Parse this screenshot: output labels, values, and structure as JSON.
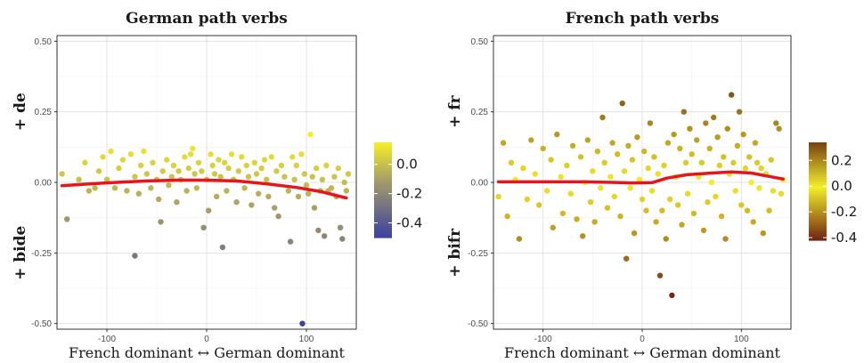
{
  "chart_data": [
    {
      "type": "scatter",
      "title": "German path verbs",
      "ylabel_top": "+ de",
      "ylabel_bottom": "+ bide",
      "xlabel": "French dominant ↔ German dominant",
      "xlim": [
        -150,
        150
      ],
      "ylim": [
        -0.52,
        0.52
      ],
      "xticks": [
        -100,
        0,
        100
      ],
      "xtick_labels": [
        "-100",
        "0",
        "100"
      ],
      "yticks": [
        -0.5,
        -0.25,
        0,
        0.25,
        0.5
      ],
      "ytick_labels": [
        "-0.50",
        "-0.25",
        "0.00",
        "0.25",
        "0.50"
      ],
      "grid": true,
      "colorbar": {
        "range": [
          -0.5,
          0.15
        ],
        "ticks": [
          0.0,
          -0.2,
          -0.4
        ],
        "tick_labels": [
          "0.0",
          "-0.2",
          "-0.4"
        ],
        "low_color": "#3b3fa0",
        "mid_color": "#a39a6a",
        "high_color": "#f4ee2a"
      },
      "smooth_color": "#e8141c",
      "smooth": [
        [
          -145,
          -0.012
        ],
        [
          -120,
          -0.006
        ],
        [
          -90,
          0.0
        ],
        [
          -60,
          0.005
        ],
        [
          -30,
          0.008
        ],
        [
          0,
          0.008
        ],
        [
          30,
          0.005
        ],
        [
          60,
          -0.005
        ],
        [
          90,
          -0.018
        ],
        [
          115,
          -0.033
        ],
        [
          140,
          -0.055
        ]
      ],
      "points": [
        [
          -145,
          0.03
        ],
        [
          -140,
          -0.13
        ],
        [
          -128,
          0.01
        ],
        [
          -122,
          0.07
        ],
        [
          -118,
          -0.03
        ],
        [
          -112,
          -0.02
        ],
        [
          -108,
          0.04
        ],
        [
          -104,
          0.09
        ],
        [
          -100,
          0.01
        ],
        [
          -96,
          0.11
        ],
        [
          -92,
          -0.02
        ],
        [
          -88,
          0.05
        ],
        [
          -84,
          0.08
        ],
        [
          -80,
          -0.03
        ],
        [
          -76,
          0.1
        ],
        [
          -72,
          -0.26
        ],
        [
          -72,
          0.02
        ],
        [
          -68,
          -0.04
        ],
        [
          -66,
          0.06
        ],
        [
          -63,
          0.11
        ],
        [
          -60,
          0.03
        ],
        [
          -56,
          -0.02
        ],
        [
          -54,
          0.07
        ],
        [
          -50,
          0.01
        ],
        [
          -48,
          -0.06
        ],
        [
          -46,
          -0.14
        ],
        [
          -44,
          0.04
        ],
        [
          -40,
          0.08
        ],
        [
          -38,
          -0.01
        ],
        [
          -35,
          0.02
        ],
        [
          -33,
          0.06
        ],
        [
          -30,
          -0.07
        ],
        [
          -28,
          0.04
        ],
        [
          -26,
          0.01
        ],
        [
          -22,
          0.09
        ],
        [
          -20,
          -0.03
        ],
        [
          -18,
          0.05
        ],
        [
          -16,
          0.1
        ],
        [
          -14,
          0.12
        ],
        [
          -12,
          0.03
        ],
        [
          -10,
          -0.02
        ],
        [
          -8,
          0.07
        ],
        [
          -5,
          0.04
        ],
        [
          -3,
          -0.16
        ],
        [
          0,
          0.01
        ],
        [
          2,
          -0.1
        ],
        [
          4,
          0.1
        ],
        [
          6,
          0.06
        ],
        [
          8,
          0.03
        ],
        [
          10,
          -0.05
        ],
        [
          12,
          0.08
        ],
        [
          14,
          0.02
        ],
        [
          16,
          -0.23
        ],
        [
          18,
          0.07
        ],
        [
          20,
          -0.03
        ],
        [
          22,
          0.05
        ],
        [
          25,
          0.1
        ],
        [
          27,
          0.01
        ],
        [
          30,
          -0.07
        ],
        [
          32,
          0.04
        ],
        [
          35,
          0.09
        ],
        [
          38,
          -0.02
        ],
        [
          40,
          0.06
        ],
        [
          42,
          0.02
        ],
        [
          45,
          -0.08
        ],
        [
          48,
          0.07
        ],
        [
          50,
          0.03
        ],
        [
          52,
          -0.04
        ],
        [
          55,
          0.05
        ],
        [
          58,
          0.08
        ],
        [
          60,
          0.01
        ],
        [
          62,
          -0.05
        ],
        [
          65,
          0.09
        ],
        [
          68,
          -0.09
        ],
        [
          70,
          0.04
        ],
        [
          72,
          -0.12
        ],
        [
          75,
          0.06
        ],
        [
          78,
          0.02
        ],
        [
          82,
          -0.03
        ],
        [
          84,
          -0.21
        ],
        [
          86,
          0.09
        ],
        [
          88,
          0.01
        ],
        [
          90,
          0.06
        ],
        [
          92,
          -0.05
        ],
        [
          95,
          0.1
        ],
        [
          96,
          -0.5
        ],
        [
          98,
          0.03
        ],
        [
          100,
          -0.01
        ],
        [
          102,
          -0.04
        ],
        [
          104,
          0.17
        ],
        [
          106,
          0.02
        ],
        [
          108,
          -0.09
        ],
        [
          110,
          0.05
        ],
        [
          112,
          -0.17
        ],
        [
          114,
          -0.03
        ],
        [
          116,
          0.01
        ],
        [
          118,
          -0.19
        ],
        [
          120,
          0.06
        ],
        [
          122,
          -0.03
        ],
        [
          125,
          -0.02
        ],
        [
          128,
          0.02
        ],
        [
          130,
          -0.05
        ],
        [
          132,
          0.05
        ],
        [
          134,
          -0.16
        ],
        [
          136,
          -0.2
        ],
        [
          138,
          0.0
        ],
        [
          140,
          -0.03
        ],
        [
          142,
          0.03
        ]
      ]
    },
    {
      "type": "scatter",
      "title": "French path verbs",
      "ylabel_top": "+ fr",
      "ylabel_bottom": "+ bifr",
      "xlabel": "French dominant ↔ German dominant",
      "xlim": [
        -150,
        150
      ],
      "ylim": [
        -0.52,
        0.52
      ],
      "xticks": [
        -100,
        0,
        100
      ],
      "xtick_labels": [
        "-100",
        "0",
        "100"
      ],
      "yticks": [
        -0.5,
        -0.25,
        0,
        0.25,
        0.5
      ],
      "ytick_labels": [
        "-0.50",
        "-0.25",
        "0.00",
        "0.25",
        "0.50"
      ],
      "grid": true,
      "colorbar": {
        "range": [
          -0.42,
          0.34
        ],
        "ticks": [
          0.2,
          0.0,
          -0.2,
          -0.4
        ],
        "tick_labels": [
          "0.2",
          "0.0",
          "-0.2",
          "-0.4"
        ],
        "low_color": "#6e1f12",
        "mid_color": "#f4ee2a",
        "high_color": "#7a4514"
      },
      "smooth_color": "#e8141c",
      "smooth": [
        [
          -145,
          0.002
        ],
        [
          -100,
          0.002
        ],
        [
          -60,
          0.002
        ],
        [
          -30,
          0.0
        ],
        [
          -10,
          -0.002
        ],
        [
          10,
          -0.001
        ],
        [
          25,
          0.015
        ],
        [
          45,
          0.027
        ],
        [
          70,
          0.033
        ],
        [
          90,
          0.037
        ],
        [
          110,
          0.033
        ],
        [
          130,
          0.02
        ],
        [
          142,
          0.012
        ]
      ],
      "points": [
        [
          -145,
          -0.05
        ],
        [
          -140,
          0.14
        ],
        [
          -136,
          -0.12
        ],
        [
          -132,
          0.07
        ],
        [
          -128,
          0.01
        ],
        [
          -124,
          -0.2
        ],
        [
          -120,
          0.05
        ],
        [
          -116,
          -0.06
        ],
        [
          -112,
          0.15
        ],
        [
          -108,
          0.03
        ],
        [
          -104,
          -0.08
        ],
        [
          -100,
          0.12
        ],
        [
          -96,
          -0.03
        ],
        [
          -92,
          0.08
        ],
        [
          -90,
          -0.16
        ],
        [
          -86,
          0.17
        ],
        [
          -82,
          0.02
        ],
        [
          -80,
          -0.11
        ],
        [
          -76,
          0.06
        ],
        [
          -72,
          -0.04
        ],
        [
          -70,
          0.13
        ],
        [
          -66,
          -0.13
        ],
        [
          -62,
          0.09
        ],
        [
          -60,
          -0.19
        ],
        [
          -58,
          0.0
        ],
        [
          -55,
          0.15
        ],
        [
          -52,
          -0.07
        ],
        [
          -50,
          0.04
        ],
        [
          -48,
          -0.14
        ],
        [
          -45,
          0.11
        ],
        [
          -42,
          -0.02
        ],
        [
          -40,
          0.23
        ],
        [
          -38,
          0.07
        ],
        [
          -35,
          -0.09
        ],
        [
          -32,
          0.02
        ],
        [
          -30,
          0.14
        ],
        [
          -28,
          -0.05
        ],
        [
          -25,
          0.1
        ],
        [
          -22,
          -0.12
        ],
        [
          -20,
          0.28
        ],
        [
          -18,
          0.04
        ],
        [
          -16,
          -0.27
        ],
        [
          -14,
          0.13
        ],
        [
          -12,
          -0.02
        ],
        [
          -10,
          0.08
        ],
        [
          -8,
          -0.18
        ],
        [
          -5,
          0.16
        ],
        [
          -3,
          0.01
        ],
        [
          0,
          -0.06
        ],
        [
          2,
          0.11
        ],
        [
          4,
          -0.1
        ],
        [
          6,
          0.05
        ],
        [
          8,
          0.21
        ],
        [
          10,
          -0.03
        ],
        [
          12,
          0.09
        ],
        [
          14,
          -0.14
        ],
        [
          16,
          0.03
        ],
        [
          18,
          -0.33
        ],
        [
          20,
          -0.1
        ],
        [
          22,
          0.06
        ],
        [
          24,
          -0.2
        ],
        [
          26,
          0.14
        ],
        [
          28,
          -0.06
        ],
        [
          30,
          -0.4
        ],
        [
          32,
          0.17
        ],
        [
          34,
          0.02
        ],
        [
          36,
          -0.08
        ],
        [
          38,
          0.12
        ],
        [
          40,
          -0.15
        ],
        [
          42,
          0.25
        ],
        [
          44,
          0.07
        ],
        [
          46,
          -0.04
        ],
        [
          48,
          0.19
        ],
        [
          50,
          0.1
        ],
        [
          52,
          -0.11
        ],
        [
          55,
          0.15
        ],
        [
          57,
          0.02
        ],
        [
          60,
          0.07
        ],
        [
          62,
          -0.17
        ],
        [
          64,
          0.21
        ],
        [
          66,
          -0.07
        ],
        [
          68,
          0.12
        ],
        [
          70,
          0.0
        ],
        [
          72,
          0.23
        ],
        [
          74,
          -0.05
        ],
        [
          76,
          0.16
        ],
        [
          78,
          0.06
        ],
        [
          80,
          -0.12
        ],
        [
          82,
          0.09
        ],
        [
          84,
          -0.2
        ],
        [
          86,
          0.19
        ],
        [
          88,
          0.03
        ],
        [
          90,
          0.31
        ],
        [
          92,
          0.07
        ],
        [
          94,
          -0.03
        ],
        [
          96,
          0.13
        ],
        [
          98,
          0.25
        ],
        [
          100,
          -0.08
        ],
        [
          102,
          0.17
        ],
        [
          104,
          0.05
        ],
        [
          106,
          -0.1
        ],
        [
          108,
          0.09
        ],
        [
          110,
          0.0
        ],
        [
          112,
          -0.14
        ],
        [
          114,
          0.14
        ],
        [
          116,
          0.07
        ],
        [
          118,
          -0.02
        ],
        [
          120,
          0.05
        ],
        [
          122,
          -0.18
        ],
        [
          125,
          0.03
        ],
        [
          128,
          -0.1
        ],
        [
          130,
          0.08
        ],
        [
          132,
          -0.03
        ],
        [
          135,
          0.21
        ],
        [
          138,
          0.19
        ],
        [
          140,
          -0.04
        ],
        [
          142,
          0.01
        ]
      ]
    }
  ]
}
